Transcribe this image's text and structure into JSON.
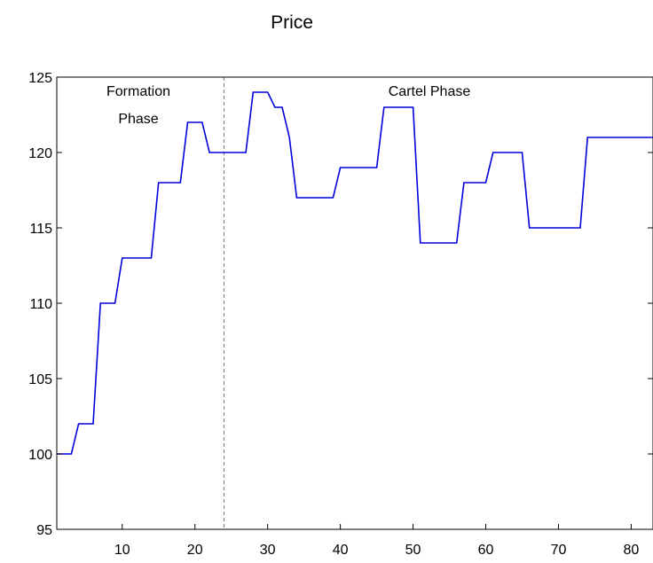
{
  "chart_data": {
    "type": "line",
    "title": "Price",
    "xlabel": "",
    "ylabel": "",
    "xlim": [
      1,
      83
    ],
    "ylim": [
      95,
      125
    ],
    "xticks": [
      10,
      20,
      30,
      40,
      50,
      60,
      70,
      80
    ],
    "yticks": [
      95,
      100,
      105,
      110,
      115,
      120,
      125
    ],
    "grid": false,
    "series_color": "#0000dd",
    "divider_x": 24,
    "annotations": [
      {
        "lines": [
          "Formation",
          "Phase"
        ]
      },
      {
        "lines": [
          "Cartel Phase"
        ]
      }
    ],
    "series": [
      {
        "x": [
          1,
          2,
          3,
          4,
          5,
          6,
          7,
          8,
          9,
          10,
          11,
          12,
          13,
          14,
          15,
          16,
          17,
          18,
          19,
          20,
          21,
          22,
          23,
          24,
          25,
          26,
          27,
          28,
          29,
          30,
          31,
          32,
          33,
          34,
          35,
          36,
          37,
          38,
          39,
          40,
          41,
          42,
          43,
          44,
          45,
          46,
          47,
          48,
          49,
          50,
          51,
          52,
          53,
          54,
          55,
          56,
          57,
          58,
          59,
          60,
          61,
          62,
          63,
          64,
          65,
          66,
          67,
          68,
          69,
          70,
          71,
          72,
          73,
          74,
          75,
          76,
          77,
          78,
          79,
          80,
          81,
          82,
          83
        ],
        "values": [
          100,
          100,
          100,
          102,
          102,
          102,
          110,
          110,
          110,
          113,
          113,
          113,
          113,
          113,
          118,
          118,
          118,
          118,
          122,
          122,
          122,
          120,
          120,
          120,
          120,
          120,
          120,
          124,
          124,
          124,
          123,
          123,
          121,
          117,
          117,
          117,
          117,
          117,
          117,
          119,
          119,
          119,
          119,
          119,
          119,
          123,
          123,
          123,
          123,
          123,
          114,
          114,
          114,
          114,
          114,
          114,
          118,
          118,
          118,
          118,
          120,
          120,
          120,
          120,
          120,
          115,
          115,
          115,
          115,
          115,
          115,
          115,
          115,
          121,
          121,
          121,
          121,
          121,
          121,
          121,
          121,
          121,
          121
        ]
      }
    ]
  }
}
